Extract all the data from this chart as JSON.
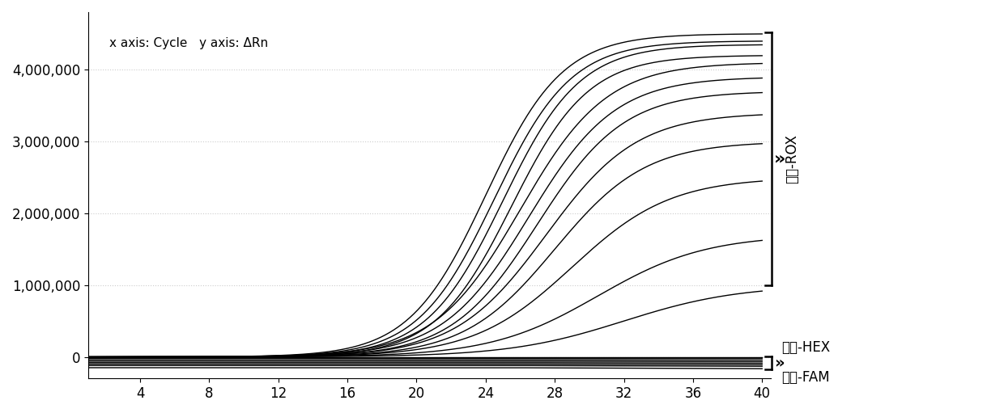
{
  "x_min": 1,
  "x_max": 40,
  "y_min": -300000,
  "y_max": 4800000,
  "x_ticks": [
    4,
    8,
    12,
    16,
    20,
    24,
    28,
    32,
    36,
    40
  ],
  "y_ticks": [
    0,
    1000000,
    2000000,
    3000000,
    4000000
  ],
  "y_tick_labels": [
    "0",
    "1,000,000",
    "2,000,000",
    "3,000,000",
    "4,000,000"
  ],
  "annotation_text": "x axis: Cycle   y axis: ΔRn",
  "label_rox": "质控-ROX",
  "label_hex": "山羊-HEX",
  "label_fam": "奶牛-FAM",
  "background_color": "#ffffff",
  "line_color": "#000000",
  "grid_color": "#cccccc",
  "rox_curves": {
    "count": 12,
    "midpoints": [
      24.0,
      24.5,
      25.0,
      25.5,
      26.0,
      26.5,
      27.0,
      27.5,
      28.0,
      29.0,
      30.5,
      32.0
    ],
    "plateaus": [
      4500000,
      4400000,
      4350000,
      4200000,
      4100000,
      3900000,
      3700000,
      3400000,
      3000000,
      2500000,
      1700000,
      1000000
    ],
    "steepness": [
      0.45,
      0.45,
      0.45,
      0.45,
      0.4,
      0.4,
      0.4,
      0.38,
      0.38,
      0.35,
      0.32,
      0.3
    ]
  },
  "flat_curves": {
    "count": 8,
    "offsets": [
      0,
      -20000,
      -40000,
      -60000,
      -80000,
      -100000,
      -120000,
      -150000
    ]
  }
}
